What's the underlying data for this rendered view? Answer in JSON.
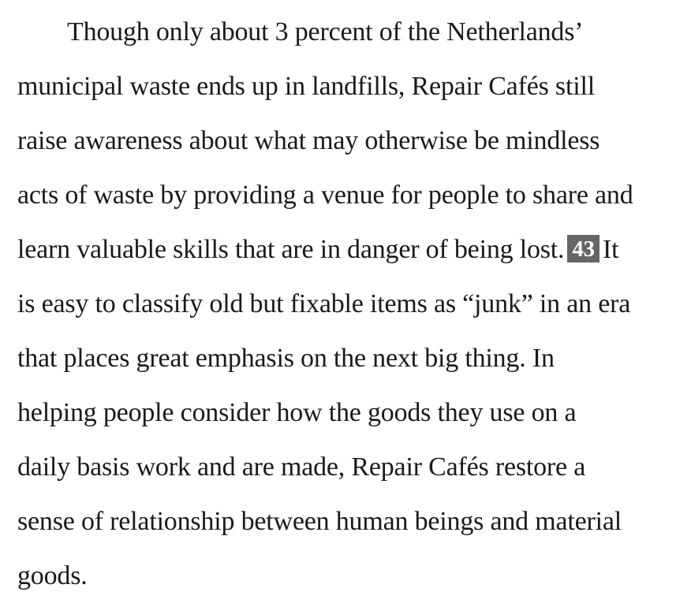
{
  "paragraph": {
    "lines": [
      "Though only about 3 percent of the Netherlands’",
      "municipal waste ends up in landfills, Repair Cafés still",
      "raise awareness about what may otherwise be mindless",
      "acts of waste by providing a venue for people to share and",
      "learn valuable skills that are in danger of being lost.",
      "It",
      "is easy to classify old but fixable items as “junk” in an era",
      "that places great emphasis on the next big thing. In",
      "helping people consider how the goods they use on a",
      "daily basis work and are made, Repair Cafés restore a",
      "sense of relationship between human beings and material",
      "goods."
    ],
    "footnote_marker": "43"
  },
  "colors": {
    "text": "#1a1a1a",
    "marker_background": "#666666",
    "marker_text": "#ffffff"
  }
}
